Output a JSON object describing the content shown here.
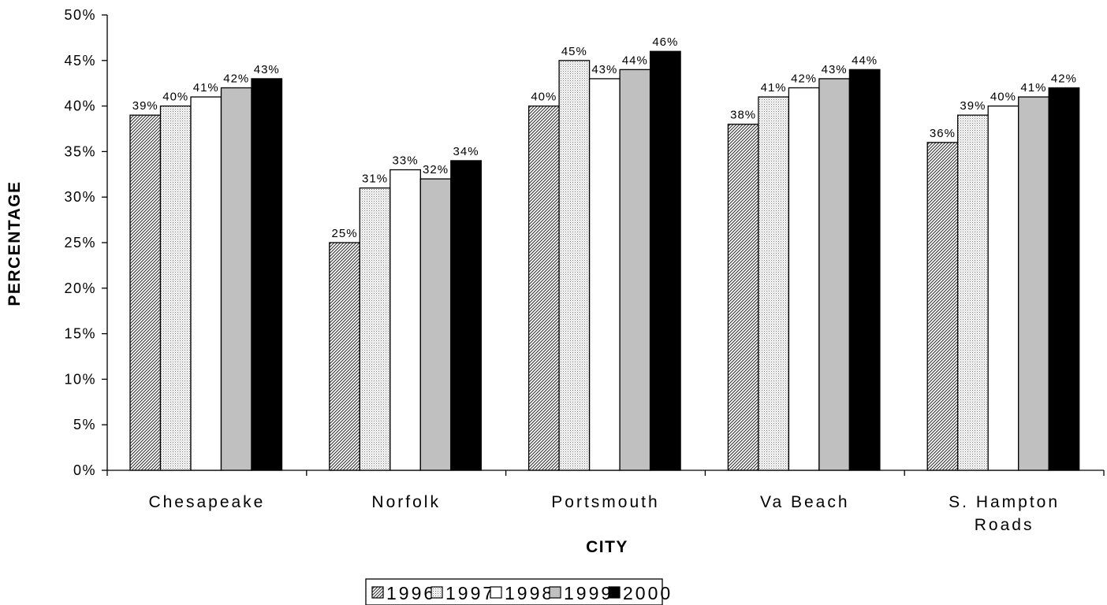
{
  "chart_data": {
    "type": "bar",
    "title": "",
    "xlabel": "CITY",
    "ylabel": "PERCENTAGE",
    "ylim": [
      0,
      50
    ],
    "y_ticks": [
      "0%",
      "5%",
      "10%",
      "15%",
      "20%",
      "25%",
      "30%",
      "35%",
      "40%",
      "45%",
      "50%"
    ],
    "categories": [
      "Chesapeake",
      "Norfolk",
      "Portsmouth",
      "Va Beach",
      "S. Hampton Roads"
    ],
    "category_lines": [
      [
        "Chesapeake"
      ],
      [
        "Norfolk"
      ],
      [
        "Portsmouth"
      ],
      [
        "Va Beach"
      ],
      [
        "S. Hampton",
        "Roads"
      ]
    ],
    "grid": false,
    "legend_position": "bottom",
    "series": [
      {
        "name": "1996",
        "fill": "diagonal-hatch",
        "values": [
          39,
          25,
          40,
          38,
          36
        ],
        "labels": [
          "39%",
          "25%",
          "40%",
          "38%",
          "36%"
        ]
      },
      {
        "name": "1997",
        "fill": "fine-dots",
        "values": [
          40,
          31,
          45,
          41,
          39
        ],
        "labels": [
          "40%",
          "31%",
          "45%",
          "41%",
          "39%"
        ]
      },
      {
        "name": "1998",
        "fill": "#ffffff",
        "values": [
          41,
          33,
          43,
          42,
          40
        ],
        "labels": [
          "41%",
          "33%",
          "43%",
          "42%",
          "40%"
        ]
      },
      {
        "name": "1999",
        "fill": "#c0c0c0",
        "values": [
          42,
          32,
          44,
          43,
          41
        ],
        "labels": [
          "42%",
          "32%",
          "44%",
          "43%",
          "41%"
        ]
      },
      {
        "name": "2000",
        "fill": "#000000",
        "values": [
          43,
          34,
          46,
          44,
          42
        ],
        "labels": [
          "43%",
          "34%",
          "46%",
          "44%",
          "42%"
        ]
      }
    ]
  }
}
